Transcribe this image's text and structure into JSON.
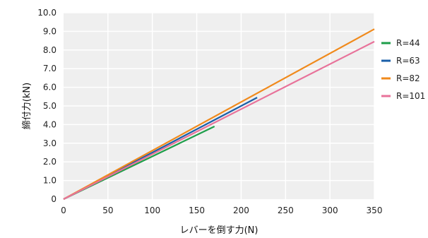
{
  "chart_data": {
    "type": "line",
    "xlabel": "レバーを倒す力(N)",
    "ylabel": "締付力(kN)",
    "xlim": [
      0,
      350
    ],
    "ylim": [
      0,
      10
    ],
    "x_ticks": [
      "0",
      "50",
      "100",
      "150",
      "200",
      "250",
      "300",
      "350"
    ],
    "y_ticks": [
      "0",
      "1.0",
      "2.0",
      "3.0",
      "4.0",
      "5.0",
      "6.0",
      "7.0",
      "8.0",
      "9.0",
      "10.0"
    ],
    "grid": true,
    "legend_position": "right",
    "series": [
      {
        "name": "R=44",
        "color": "#1e9e4a",
        "points": [
          [
            0,
            0
          ],
          [
            170,
            3.9
          ]
        ]
      },
      {
        "name": "R=63",
        "color": "#1a5fa8",
        "points": [
          [
            0,
            0
          ],
          [
            218,
            5.45
          ]
        ]
      },
      {
        "name": "R=82",
        "color": "#f08a1c",
        "points": [
          [
            0,
            0
          ],
          [
            350,
            9.12
          ]
        ]
      },
      {
        "name": "R=101",
        "color": "#e8729a",
        "points": [
          [
            0,
            0
          ],
          [
            350,
            8.45
          ]
        ]
      }
    ]
  }
}
